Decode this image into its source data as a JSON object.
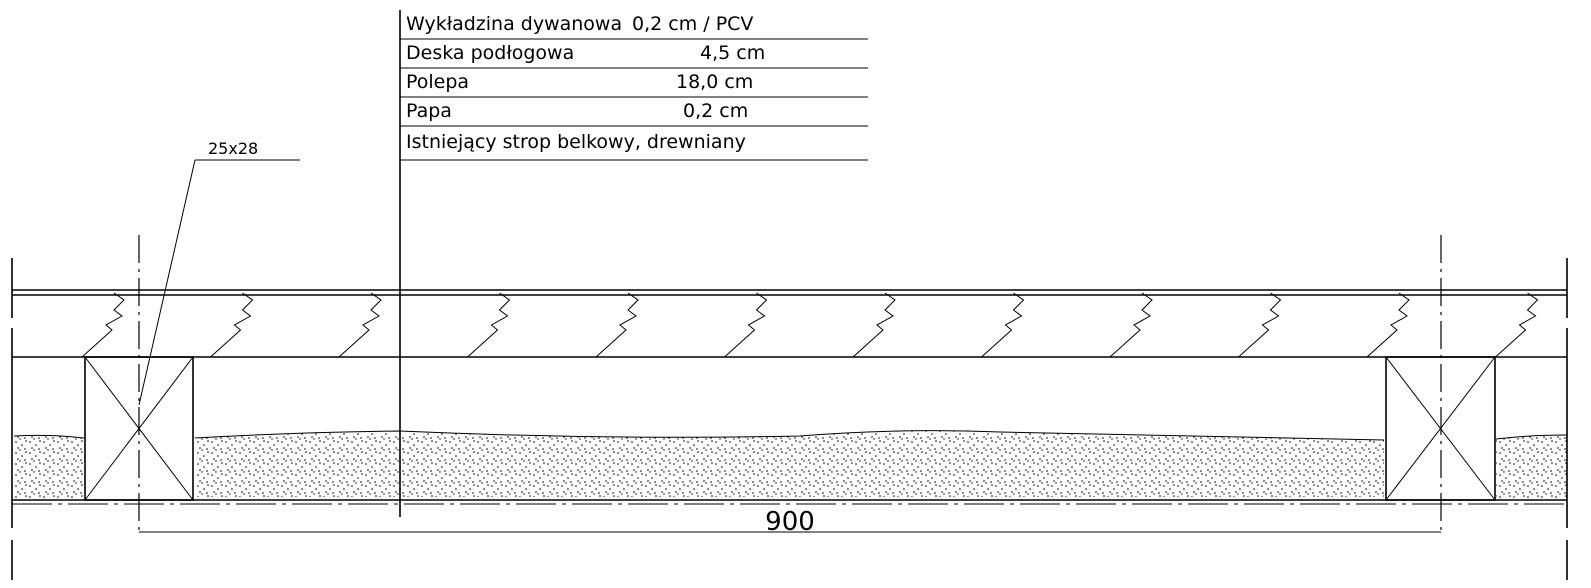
{
  "layers": [
    {
      "name": "Wykładzina dywanowa",
      "thickness": "0,2 cm / PCV"
    },
    {
      "name": "Deska podłogowa",
      "thickness": "4,5 cm"
    },
    {
      "name": "Polepa",
      "thickness": "18,0 cm"
    },
    {
      "name": "Papa",
      "thickness": "0,2 cm"
    },
    {
      "name": "Istniejący strop belkowy, drewniany"
    }
  ],
  "beam_label": "25x28",
  "span": "900"
}
